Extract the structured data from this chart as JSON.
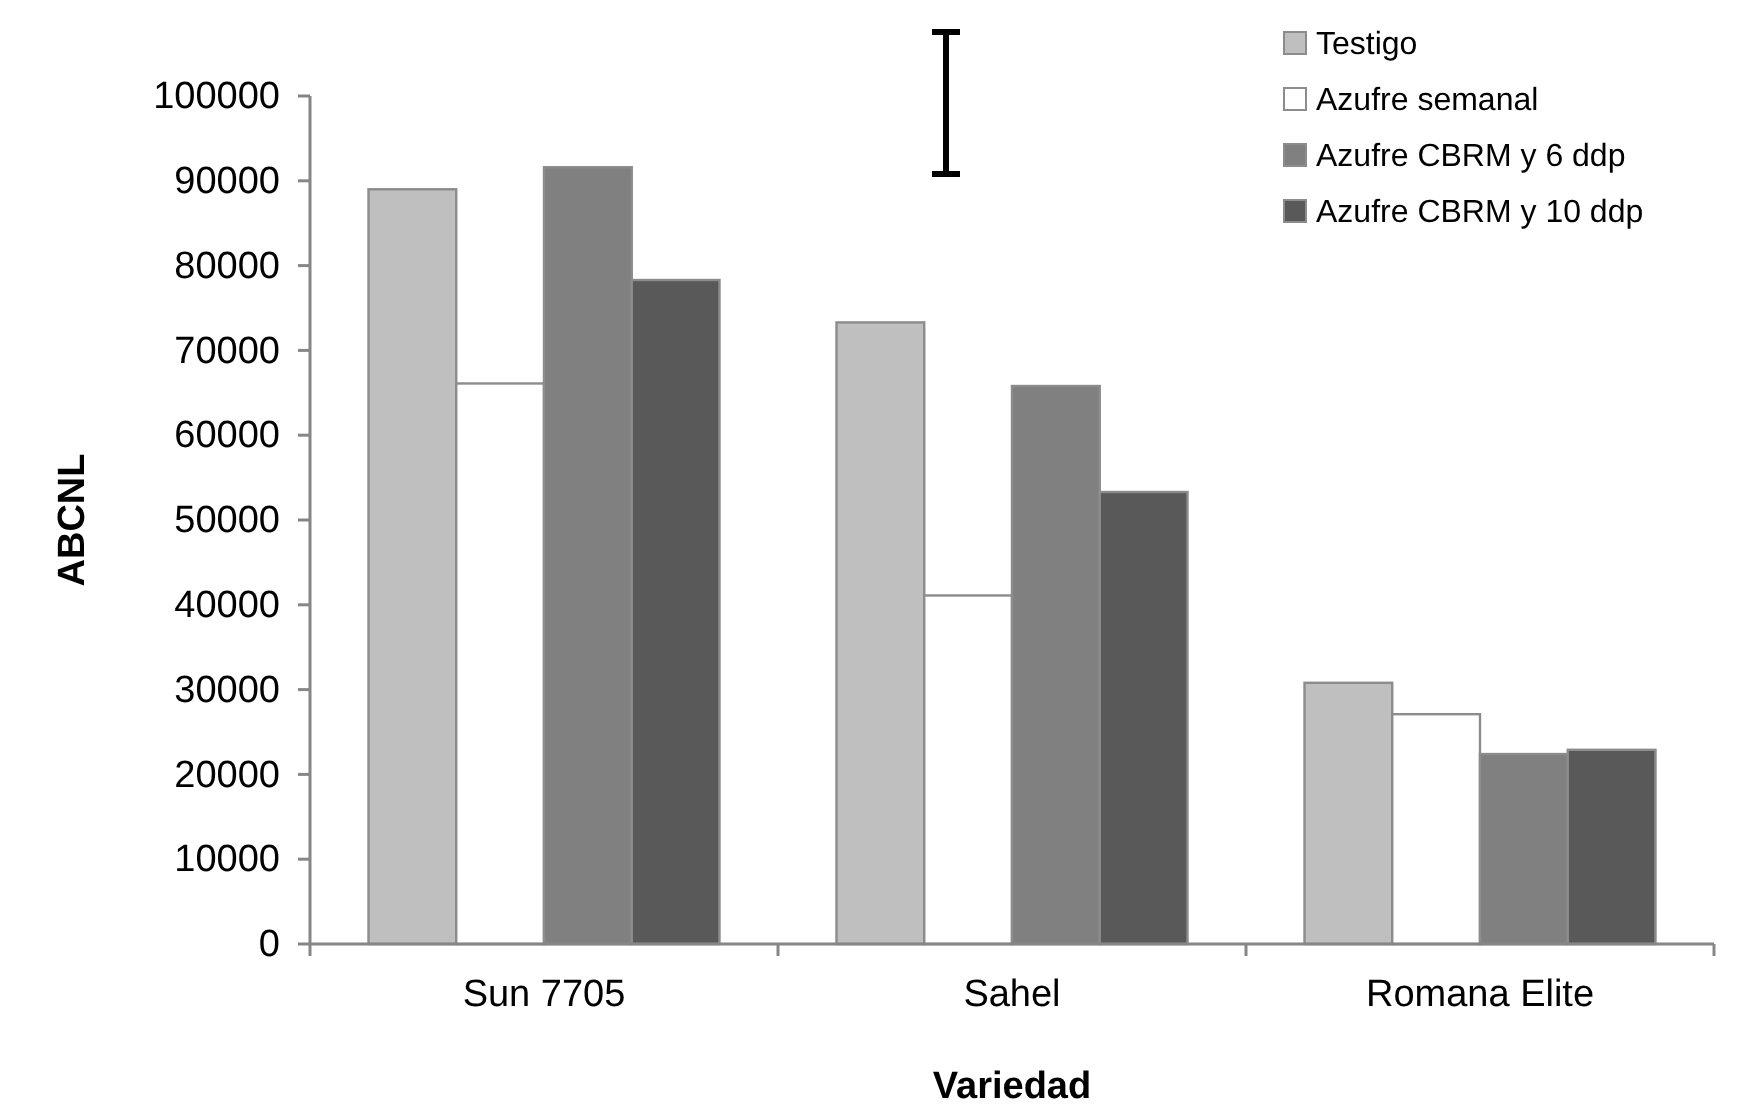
{
  "chart_data": {
    "type": "bar",
    "xlabel": "Variedad",
    "ylabel": "ABCNL",
    "categories": [
      "Sun 7705",
      "Sahel",
      "Romana Elite"
    ],
    "series": [
      {
        "name": "Testigo",
        "color": "#bfbfbf",
        "values": [
          89000,
          73300,
          30800
        ]
      },
      {
        "name": "Azufre semanal",
        "color": "#ffffff",
        "values": [
          66100,
          41100,
          27100
        ]
      },
      {
        "name": "Azufre CBRM y 6 ddp",
        "color": "#808080",
        "values": [
          91600,
          65800,
          22400
        ]
      },
      {
        "name": "Azufre CBRM y 10 ddp",
        "color": "#595959",
        "values": [
          78300,
          53300,
          22900
        ]
      }
    ],
    "ylim": [
      0,
      100000
    ],
    "yticks": [
      0,
      10000,
      20000,
      30000,
      40000,
      50000,
      60000,
      70000,
      80000,
      90000,
      100000
    ],
    "grid": false,
    "legend": "top right"
  }
}
